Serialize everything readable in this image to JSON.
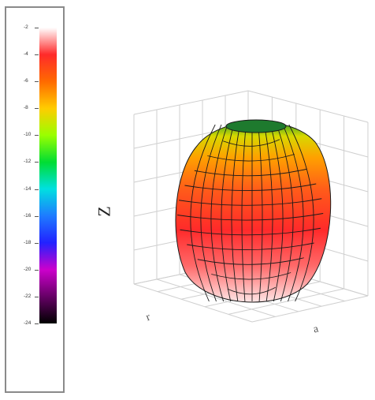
{
  "chart_data": {
    "type": "surface-3d",
    "title": "",
    "colorbar": {
      "ticks": [
        "-2",
        "-4",
        "-6",
        "-8",
        "-10",
        "-12",
        "-14",
        "-16",
        "-18",
        "-20",
        "-22",
        "-24"
      ],
      "range": [
        -24,
        -2
      ],
      "colormap": [
        "#ffffff",
        "#ff2a2a",
        "#ff6a00",
        "#ffcc00",
        "#99ff00",
        "#00dd33",
        "#00e0e0",
        "#1e7bff",
        "#2222ff",
        "#cc00cc",
        "#660066",
        "#000000"
      ]
    },
    "axes": {
      "zlabel": "Z",
      "xlabel": "r",
      "ylabel": "a"
    },
    "colors": {
      "grid": "#cfcfcf",
      "mesh": "#1a1a1a"
    }
  }
}
